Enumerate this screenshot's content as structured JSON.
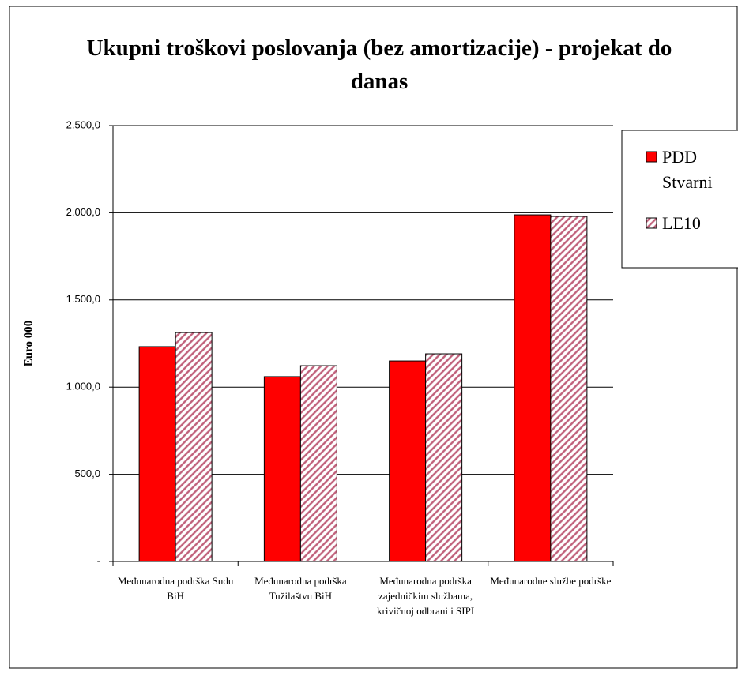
{
  "chart_data": {
    "type": "bar",
    "title": "Ukupni troškovi poslovanja (bez amortizacije) - projekat do danas",
    "y_label": "Euro 000",
    "categories": [
      "Međunarodna podrška Sudu BiH",
      "Međunarodna podrška Tužilaštvu BiH",
      "Međunarodna podrška zajedničkim službama, krivičnoj odbrani i SIPI",
      "Međunarodne službe podrške"
    ],
    "series": [
      {
        "name": "PDD Stvarni",
        "color": "#ff0000",
        "values": [
          1232,
          1060,
          1150,
          1988
        ]
      },
      {
        "name": "LE10",
        "color": "#c0607a",
        "hatch": true,
        "values": [
          1313,
          1123,
          1191,
          1979
        ]
      }
    ],
    "ylim": [
      0,
      2500
    ],
    "yticks": [
      {
        "value": 0,
        "label": "-"
      },
      {
        "value": 500,
        "label": "500,0"
      },
      {
        "value": 1000,
        "label": "1.000,0"
      },
      {
        "value": 1500,
        "label": "1.500,0"
      },
      {
        "value": 2000,
        "label": "2.000,0"
      },
      {
        "value": 2500,
        "label": "2.500,0"
      }
    ],
    "grid": true,
    "legend": "right"
  }
}
